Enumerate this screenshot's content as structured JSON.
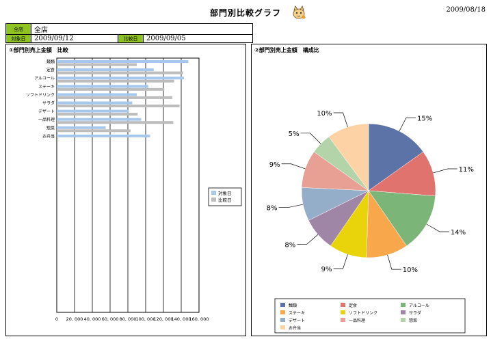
{
  "header": {
    "title": "部門別比較グラフ",
    "date": "2009/08/18"
  },
  "info": {
    "store_label": "全店",
    "store_value": "全店",
    "target_label": "対象日",
    "target_value": "2009/09/12",
    "compare_label": "比較日",
    "compare_value": "2009/09/05"
  },
  "bar_panel": {
    "title": "①部門別売上金額　比較"
  },
  "pie_panel": {
    "title": "②部門別売上金額　構成比"
  },
  "colors": {
    "target": "#a6c8ec",
    "compare": "#bdbdbd",
    "pie": [
      "#5b73a6",
      "#e0736d",
      "#7bb577",
      "#f9a74b",
      "#e9d40c",
      "#9f86a6",
      "#94adc9",
      "#e8a094",
      "#b2d4a8",
      "#fdd3a5"
    ]
  },
  "chart_data": [
    {
      "type": "bar",
      "orientation": "horizontal",
      "categories": [
        "麺類",
        "定食",
        "アルコール",
        "ステーキ",
        "ソフトドリンク",
        "サラダ",
        "デザート",
        "一品料理",
        "惣菜",
        "お弁当"
      ],
      "series": [
        {
          "name": "対象日",
          "values": [
            148000,
            109000,
            143000,
            103000,
            90000,
            85000,
            81000,
            95000,
            55000,
            105000
          ]
        },
        {
          "name": "比較日",
          "values": [
            90000,
            142000,
            132000,
            121000,
            130000,
            138000,
            91000,
            131000,
            83000,
            null
          ]
        }
      ],
      "xlim": [
        0,
        160000
      ],
      "xticks": [
        "0",
        "20, 000",
        "40, 000",
        "60, 000",
        "80, 000",
        "100, 000",
        "120, 000",
        "140, 000",
        "160, 000"
      ],
      "grid": true,
      "legend_position": "right"
    },
    {
      "type": "pie",
      "labels": [
        "麺類",
        "定食",
        "アルコール",
        "ステーキ",
        "ソフトドリンク",
        "サラダ",
        "デザート",
        "一品料理",
        "惣菜",
        "お弁当"
      ],
      "values": [
        15,
        11,
        14,
        10,
        9,
        8,
        8,
        9,
        5,
        10
      ],
      "data_labels": [
        "15%",
        "11%",
        "14%",
        "10%",
        "9%",
        "8%",
        "8%",
        "9%",
        "5%",
        "10%"
      ],
      "legend_position": "bottom"
    }
  ]
}
